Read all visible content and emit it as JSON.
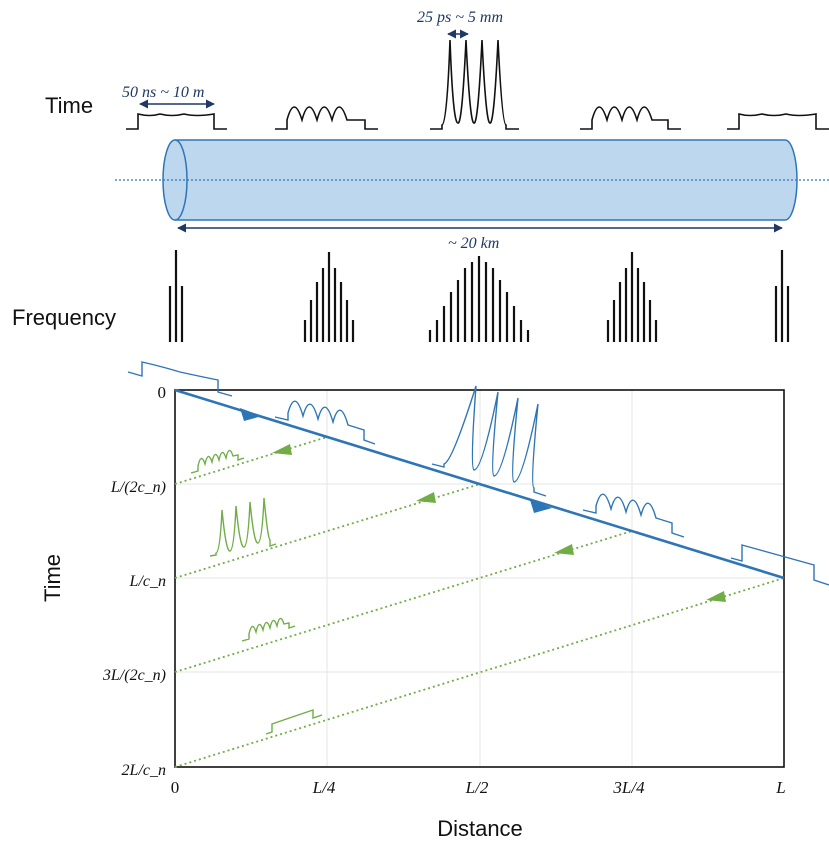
{
  "labels": {
    "time_row": "Time",
    "frequency_row": "Frequency",
    "y_axis": "Time",
    "x_axis": "Distance"
  },
  "annotations": {
    "input_pulse": "50 ns ~ 10 m",
    "compressed_pulse": "25 ps ~ 5 mm",
    "fiber_length": "~ 20 km"
  },
  "plot": {
    "x_ticks": [
      "0",
      "L/4",
      "L/2",
      "3L/4",
      "L"
    ],
    "y_ticks": [
      "0",
      "L/(2c_n)",
      "L/c_n",
      "3L/(2c_n)",
      "2L/c_n"
    ]
  },
  "colors": {
    "dark": "#111111",
    "blue": "#2e75b6",
    "fiber_fill": "#bdd7ee",
    "fiber_edge": "#2e75b6",
    "green": "#70ad47",
    "annotation": "#1f3864"
  }
}
